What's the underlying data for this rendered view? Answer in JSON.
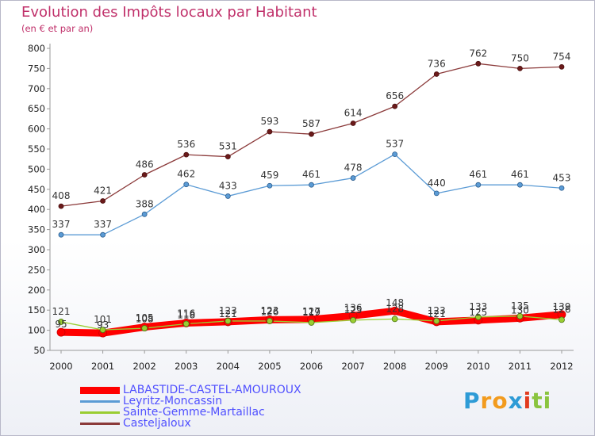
{
  "title": "Evolution des Impôts locaux par Habitant",
  "subtitle": "(en € et par an)",
  "logo": {
    "text": "Proxiti",
    "colors": [
      "#2e9bd6",
      "#f29b1e",
      "#2e9bd6",
      "#e23b1f",
      "#8ac43f"
    ]
  },
  "chart_data": {
    "type": "line",
    "x": [
      "2000",
      "2001",
      "2002",
      "2003",
      "2004",
      "2005",
      "2006",
      "2007",
      "2008",
      "2009",
      "2010",
      "2011",
      "2012"
    ],
    "ylim": [
      50,
      800
    ],
    "yticks": [
      "50",
      "100",
      "150",
      "200",
      "250",
      "300",
      "350",
      "400",
      "450",
      "500",
      "550",
      "600",
      "650",
      "700",
      "750",
      "800"
    ],
    "grid": false,
    "legend_position": "bottom-left",
    "series": [
      {
        "name": "LABASTIDE-CASTEL-AMOUROUX",
        "color": "#ff0000",
        "values": [
          95,
          93,
          108,
          118,
          121,
          126,
          127,
          136,
          148,
          121,
          125,
          130,
          139
        ],
        "labels": [
          "95",
          "93",
          "108",
          "118",
          "121",
          "126",
          "127",
          "136",
          "148",
          "121",
          "125",
          "130",
          "139"
        ]
      },
      {
        "name": "Leyritz-Moncassin",
        "color": "#5b9bd5",
        "values": [
          337,
          337,
          388,
          462,
          433,
          459,
          461,
          478,
          537,
          440,
          461,
          461,
          453
        ],
        "labels": [
          "337",
          "337",
          "388",
          "462",
          "433",
          "459",
          "461",
          "478",
          "537",
          "440",
          "461",
          "461",
          "453"
        ]
      },
      {
        "name": "Sainte-Gemme-Martaillac",
        "color": "#9acd32",
        "values": [
          121,
          101,
          105,
          116,
          123,
          123,
          119,
          125,
          128,
          123,
          133,
          135,
          126
        ],
        "labels": [
          "121",
          "101",
          "105",
          "116",
          "123",
          "123",
          "119",
          "125",
          "128",
          "123",
          "133",
          "135",
          "126"
        ]
      },
      {
        "name": "Casteljaloux",
        "color": "#8b3a3a",
        "values": [
          408,
          421,
          486,
          536,
          531,
          593,
          587,
          614,
          656,
          736,
          762,
          750,
          754
        ],
        "labels": [
          "408",
          "421",
          "486",
          "536",
          "531",
          "593",
          "587",
          "614",
          "656",
          "736",
          "762",
          "750",
          "754"
        ]
      }
    ]
  }
}
